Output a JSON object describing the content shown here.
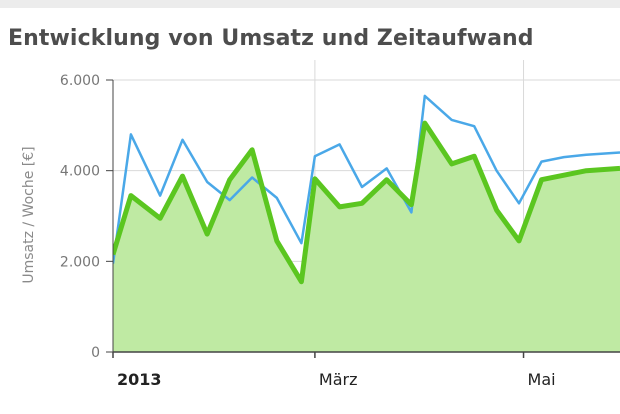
{
  "title": "Entwicklung von Umsatz und Zeitaufwand",
  "colors": {
    "area": "#bfeaa3",
    "green": "#5bc620",
    "blue": "#4aa8e8",
    "grid": "#d9d9d9",
    "axis": "#444444"
  },
  "chart_data": {
    "type": "line",
    "title": "Entwicklung von Umsatz und Zeitaufwand",
    "ylabel": "Umsatz / Woche [€]",
    "xlabel": "",
    "ylim": [
      0,
      6000
    ],
    "yticks": [
      0,
      2000,
      4000,
      6000
    ],
    "ytick_labels": [
      "0",
      "2.000",
      "4.000",
      "6.000"
    ],
    "xlim": [
      0,
      22.6
    ],
    "xticks": [
      {
        "x": 0,
        "label": "2013",
        "bold": true
      },
      {
        "x": 9,
        "label": "März",
        "bold": false
      },
      {
        "x": 18.3,
        "label": "Mai",
        "bold": false
      }
    ],
    "grid": true,
    "legend": "none",
    "x": [
      0,
      0.8,
      2.1,
      3.1,
      4.2,
      5.2,
      6.2,
      7.3,
      8.4,
      9.0,
      10.1,
      11.1,
      12.2,
      13.3,
      13.9,
      15.1,
      16.1,
      17.1,
      18.1,
      19.1,
      20.1,
      21.1,
      22.6
    ],
    "series": [
      {
        "id": "green",
        "values": [
          2150,
          3450,
          2950,
          3880,
          2600,
          3800,
          4460,
          2450,
          1550,
          3820,
          3200,
          3280,
          3800,
          3250,
          5050,
          4150,
          4320,
          3130,
          2450,
          3800,
          3900,
          4000,
          4050
        ]
      },
      {
        "id": "blue",
        "values": [
          1950,
          4800,
          3450,
          4680,
          3750,
          3350,
          3850,
          3400,
          2400,
          4320,
          4580,
          3640,
          4050,
          3080,
          5650,
          5120,
          4980,
          4000,
          3280,
          4200,
          4300,
          4350,
          4400
        ]
      }
    ]
  }
}
